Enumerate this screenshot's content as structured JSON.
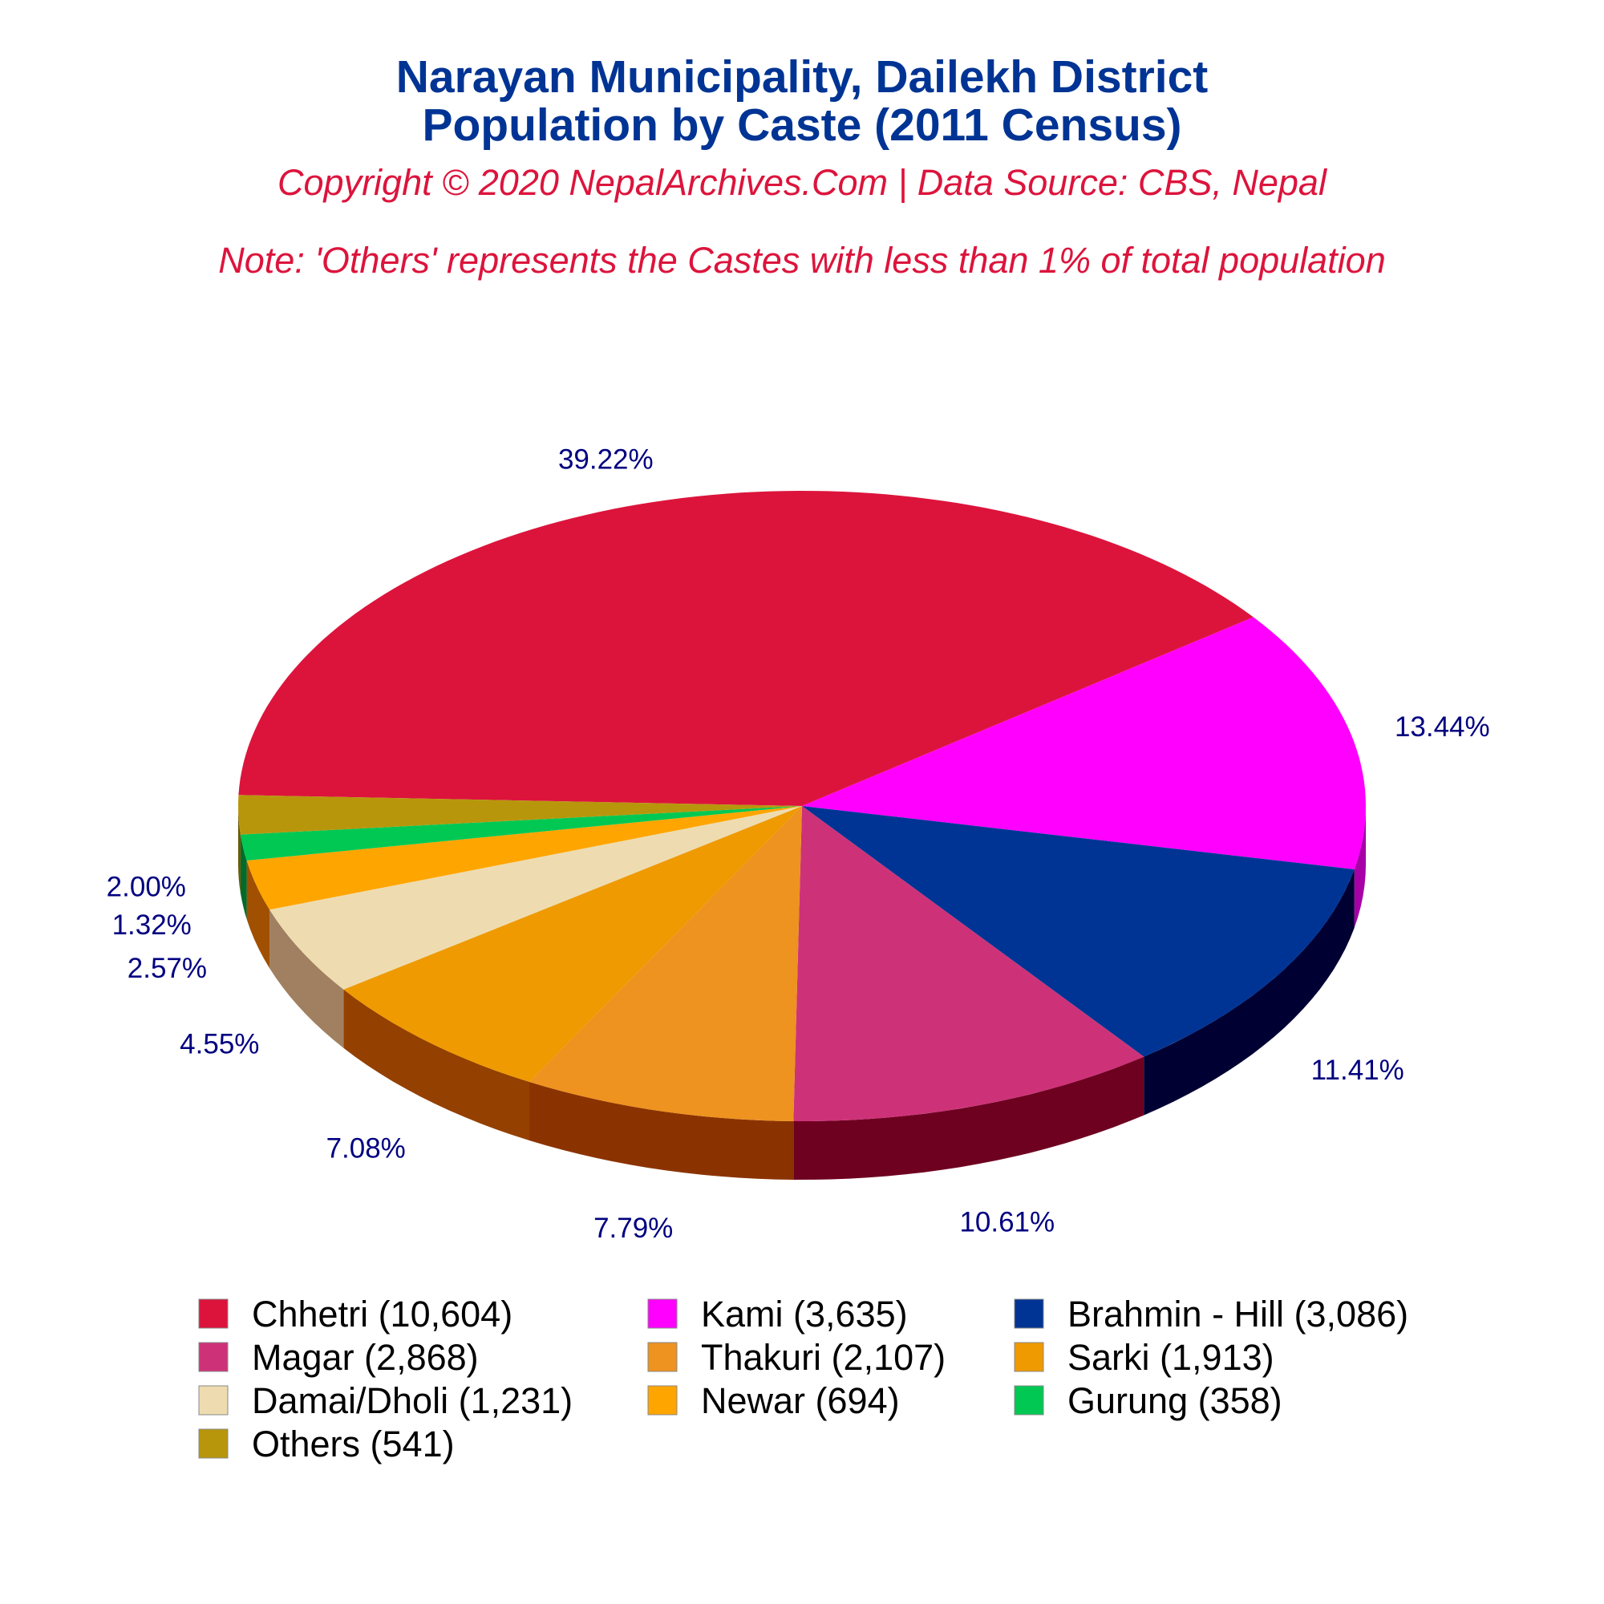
{
  "chart_data": {
    "type": "pie",
    "style": "3d",
    "title_lines": [
      "Narayan Municipality, Dailekh District",
      "Population by Caste (2011 Census)"
    ],
    "subtitle": "Copyright © 2020 NepalArchives.Com | Data Source: CBS, Nepal",
    "note": "Note: 'Others' represents the Castes with less than 1% of total population",
    "legend_position": "bottom",
    "slices": [
      {
        "label": "Chhetri (10,604)",
        "value": 10604,
        "pct_label": "39.22%",
        "color": "#dc143c",
        "side": "#8b0a26"
      },
      {
        "label": "Kami (3,635)",
        "value": 3635,
        "pct_label": "13.44%",
        "color": "#ff00ff",
        "side": "#a600a6"
      },
      {
        "label": "Brahmin - Hill (3,086)",
        "value": 3086,
        "pct_label": "11.41%",
        "color": "#003494",
        "side": "#000033"
      },
      {
        "label": "Magar (2,868)",
        "value": 2868,
        "pct_label": "10.61%",
        "color": "#cd3278",
        "side": "#6e0020"
      },
      {
        "label": "Thakuri (2,107)",
        "value": 2107,
        "pct_label": "7.79%",
        "color": "#ee9220",
        "side": "#8b3300"
      },
      {
        "label": "Sarki (1,913)",
        "value": 1913,
        "pct_label": "7.08%",
        "color": "#ef9a00",
        "side": "#944000"
      },
      {
        "label": "Damai/Dholi (1,231)",
        "value": 1231,
        "pct_label": "4.55%",
        "color": "#eedcb0",
        "side": "#a08060"
      },
      {
        "label": "Newar (694)",
        "value": 694,
        "pct_label": "2.57%",
        "color": "#ffa500",
        "side": "#a05000"
      },
      {
        "label": "Gurung (358)",
        "value": 358,
        "pct_label": "1.32%",
        "color": "#00c853",
        "side": "#006b2b"
      },
      {
        "label": "Others (541)",
        "value": 541,
        "pct_label": "2.00%",
        "color": "#b8960c",
        "side": "#6b5500"
      }
    ]
  }
}
